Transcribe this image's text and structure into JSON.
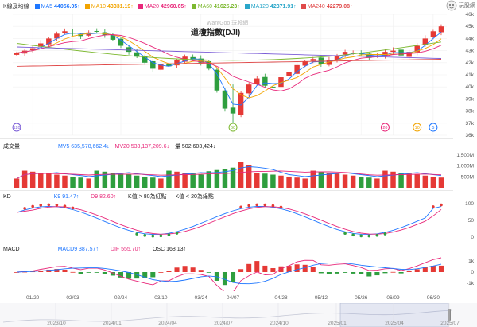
{
  "header": {
    "kline_label": "K線及均線",
    "ma": [
      {
        "label": "MA5",
        "value": "44056.05",
        "dir": "↑",
        "color": "#1f77ff"
      },
      {
        "label": "MA10",
        "value": "43331.19",
        "dir": "↑",
        "color": "#f2a400"
      },
      {
        "label": "MA20",
        "value": "42960.65",
        "dir": "↑",
        "color": "#e8287a"
      },
      {
        "label": "MA60",
        "value": "41625.23",
        "dir": "↑",
        "color": "#7cb82f"
      },
      {
        "label": "MA120",
        "value": "42371.91",
        "dir": "↑",
        "color": "#2aa6c9"
      },
      {
        "label": "MA240",
        "value": "42279.08",
        "dir": "↑",
        "color": "#e04a4a"
      }
    ],
    "logo_text": "玩股網"
  },
  "main": {
    "watermark": "WantGoo 玩股網",
    "title": "道瓊指數(DJI)",
    "y_ticks": [
      "46k",
      "45k",
      "44k",
      "43k",
      "42k",
      "41k",
      "40k",
      "39k",
      "38k",
      "37k",
      "36k"
    ],
    "markers": [
      {
        "label": "120",
        "color": "#7a5cd6"
      },
      {
        "label": "60",
        "color": "#7cb82f"
      },
      {
        "label": "20",
        "color": "#e8287a"
      },
      {
        "label": "10",
        "color": "#f2a400"
      },
      {
        "label": "5",
        "color": "#1f77ff"
      }
    ]
  },
  "volume": {
    "label": "成交量",
    "mv5": "MV5 635,578,662.4",
    "mv5_dir": "↓",
    "mv20": "MV20 533,137,209.6",
    "mv20_dir": "↓",
    "vol": "量 502,603,424",
    "vol_dir": "↓",
    "y_ticks": [
      "1,500M",
      "1,000M",
      "500M"
    ]
  },
  "kd": {
    "label": "KD",
    "k": "K9 91.47",
    "k_dir": "↑",
    "d": "D9 82.60",
    "d_dir": "↑",
    "note1": "K值 > 80為紅點",
    "note2": "K值 < 20為綠點",
    "y_ticks": [
      "100",
      "50",
      "0"
    ]
  },
  "macd": {
    "label": "MACD",
    "macd9": "MACD9 387.57",
    "macd9_dir": "↑",
    "dif": "DIF 555.70",
    "dif_dir": "↑",
    "osc": "OSC 168.13",
    "osc_dir": "↑",
    "y_ticks": [
      "1k",
      "0",
      "-1k"
    ]
  },
  "x_axis": {
    "dates": [
      "01/20",
      "02/03",
      "02/24",
      "03/10",
      "03/24",
      "04/07",
      "04/28",
      "05/12",
      "05/26",
      "06/09",
      "06/30"
    ]
  },
  "timeline": {
    "labels": [
      "2023/10",
      "2024/01",
      "2024/04",
      "2024/07",
      "2024/10",
      "2025/01",
      "2025/04",
      "2025/07"
    ]
  },
  "chart_data": {
    "type": "candlestick",
    "title": "道瓊指數(DJI)",
    "y_unit": "points",
    "ylim": [
      36000,
      46000
    ],
    "x_tick_labels": [
      "01/20",
      "02/03",
      "02/24",
      "03/10",
      "03/24",
      "04/07",
      "04/28",
      "05/12",
      "05/26",
      "06/09",
      "06/30"
    ],
    "close_approx": [
      42800,
      43000,
      43200,
      43600,
      44000,
      44400,
      44600,
      44400,
      44200,
      44500,
      44600,
      44300,
      43900,
      43400,
      42900,
      42500,
      42000,
      41500,
      41900,
      41700,
      42200,
      42500,
      42300,
      42000,
      41500,
      39700,
      38200,
      37800,
      39500,
      40200,
      40700,
      40100,
      40000,
      40800,
      41200,
      41800,
      42100,
      42300,
      41900,
      42200,
      42600,
      42900,
      42800,
      42700,
      42400,
      42600,
      42900,
      43000,
      42600,
      42900,
      43400,
      44000,
      44600,
      45000
    ],
    "ma_latest": {
      "MA5": 44056.05,
      "MA10": 43331.19,
      "MA20": 42960.65,
      "MA60": 41625.23,
      "MA120": 42371.91,
      "MA240": 42279.08
    },
    "volume_latest": 502603424,
    "mv5": 635578662.4,
    "mv20": 533137209.6,
    "k9": 91.47,
    "d9": 82.6,
    "macd9": 387.57,
    "dif": 555.7,
    "osc": 168.13
  }
}
